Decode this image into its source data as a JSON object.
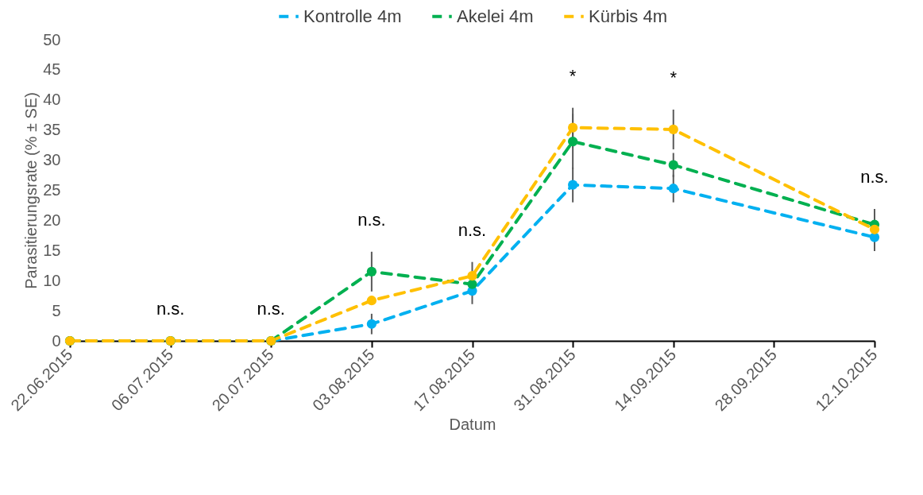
{
  "chart_data": {
    "type": "line",
    "xlabel": "Datum",
    "ylabel": "Parasitierungsrate (% ± SE)",
    "x": [
      "2015-06-22",
      "2015-07-06",
      "2015-07-20",
      "2015-08-03",
      "2015-08-17",
      "2015-08-31",
      "2015-09-14",
      "2015-10-12"
    ],
    "series": [
      {
        "name": "Kontrolle 4m",
        "color": "#00b0f0",
        "values": [
          0,
          0,
          0,
          2.8,
          8.3,
          25.9,
          25.3,
          17.2
        ],
        "errors": [
          null,
          null,
          null,
          1.7,
          2.2,
          2.9,
          2.3,
          2.3
        ]
      },
      {
        "name": "Akelei 4m",
        "color": "#00b050",
        "values": [
          0,
          0,
          0,
          11.5,
          9.4,
          33.1,
          29.2,
          19.3
        ],
        "errors": [
          null,
          null,
          null,
          3.3,
          null,
          4.6,
          2.0,
          2.6
        ]
      },
      {
        "name": "Kürbis 4m",
        "color": "#ffc000",
        "values": [
          0,
          0,
          0,
          6.7,
          10.8,
          35.4,
          35.1,
          18.5
        ],
        "errors": [
          null,
          null,
          null,
          null,
          2.3,
          3.3,
          3.3,
          null
        ]
      }
    ],
    "xlim": [
      "2015-06-22",
      "2015-10-12"
    ],
    "xticks": [
      {
        "value": "2015-06-22",
        "label": "22.06.2015"
      },
      {
        "value": "2015-07-06",
        "label": "06.07.2015"
      },
      {
        "value": "2015-07-20",
        "label": "20.07.2015"
      },
      {
        "value": "2015-08-03",
        "label": "03.08.2015"
      },
      {
        "value": "2015-08-17",
        "label": "17.08.2015"
      },
      {
        "value": "2015-08-31",
        "label": "31.08.2015"
      },
      {
        "value": "2015-09-14",
        "label": "14.09.2015"
      },
      {
        "value": "2015-09-28",
        "label": "28.09.2015"
      },
      {
        "value": "2015-10-12",
        "label": "12.10.2015"
      }
    ],
    "ylim": [
      0,
      50
    ],
    "yticks": [
      0,
      5,
      10,
      15,
      20,
      25,
      30,
      35,
      40,
      45,
      50
    ],
    "annotations": [
      "n.s.",
      "n.s.",
      "n.s.",
      "n.s.",
      "*",
      "*",
      "n.s."
    ],
    "grid": false,
    "legend": "top",
    "marker": "circle",
    "line_style": "dashed"
  }
}
